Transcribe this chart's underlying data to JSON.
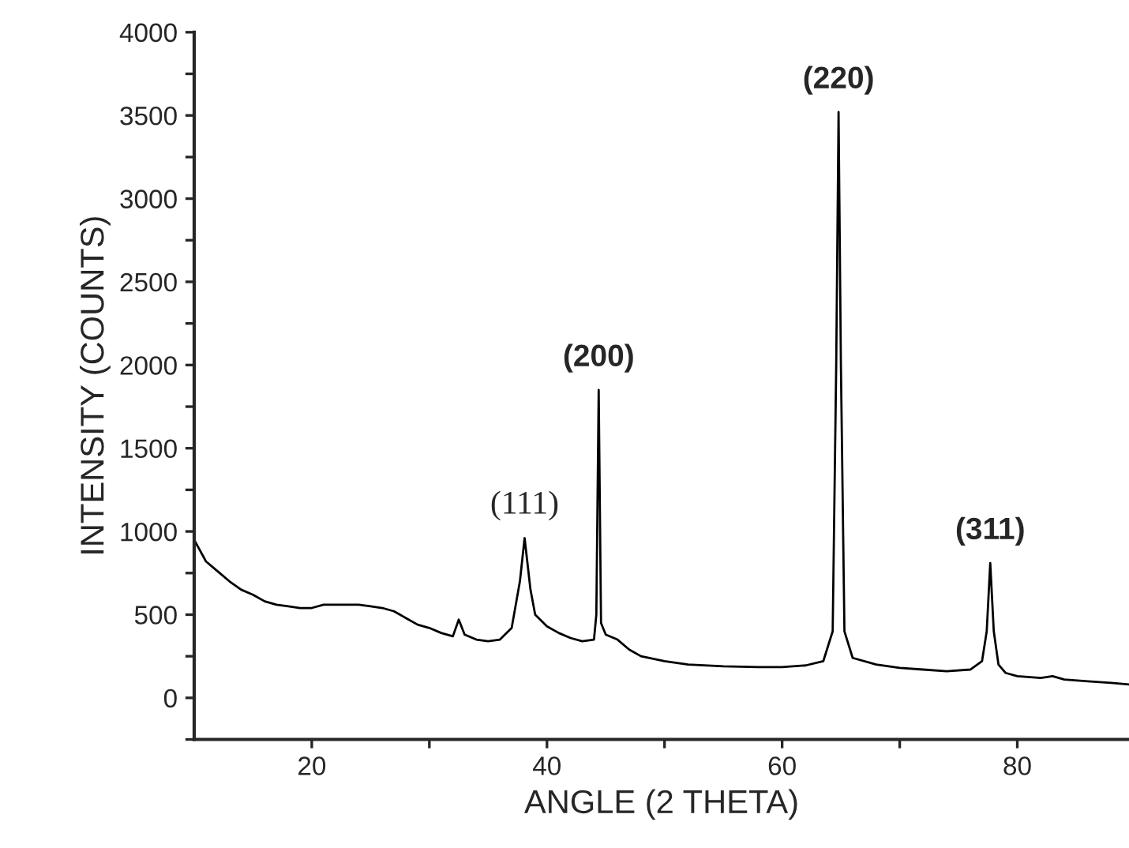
{
  "chart_data": {
    "type": "line",
    "xlabel": "ANGLE (2 THETA)",
    "ylabel": "INTENSITY (COUNTS)",
    "xlim": [
      10,
      89.5
    ],
    "xticks": [
      20,
      {
        "value": 30,
        "label": null
      },
      40,
      {
        "value": 50,
        "label": null
      },
      60,
      {
        "value": 70,
        "label": null
      },
      80
    ],
    "ylim": [
      -250,
      4000
    ],
    "yticks": [
      {
        "value": -250,
        "label": null
      },
      0,
      {
        "value": 250,
        "label": null
      },
      500,
      {
        "value": 750,
        "label": null
      },
      1000,
      {
        "value": 1250,
        "label": null
      },
      1500,
      {
        "value": 1750,
        "label": null
      },
      2000,
      {
        "value": 2250,
        "label": null
      },
      2500,
      {
        "value": 2750,
        "label": null
      },
      3000,
      {
        "value": 3250,
        "label": null
      },
      3500,
      {
        "value": 3750,
        "label": null
      },
      4000
    ],
    "grid": false,
    "legend": false,
    "marker": "none",
    "line_style": "solid",
    "series": [
      {
        "color": "#000000",
        "x": [
          10,
          11,
          12,
          13,
          14,
          15,
          16,
          17,
          18,
          19,
          20,
          21,
          22,
          23,
          24,
          25,
          26,
          27,
          28,
          29,
          30,
          31,
          32,
          32.5,
          33,
          34,
          35,
          36,
          37,
          37.7,
          38.1,
          38.6,
          39,
          40,
          41,
          42,
          43,
          44,
          44.2,
          44.4,
          44.6,
          45,
          46,
          47,
          48,
          50,
          52,
          55,
          58,
          60,
          62,
          63.5,
          64.3,
          64.6,
          64.8,
          65.0,
          65.3,
          66,
          68,
          70,
          72,
          74,
          76,
          77,
          77.4,
          77.7,
          78.0,
          78.4,
          79,
          80,
          82,
          83,
          84,
          86,
          88,
          89.5
        ],
        "values": [
          950,
          820,
          760,
          700,
          650,
          620,
          580,
          560,
          550,
          540,
          540,
          560,
          560,
          560,
          560,
          550,
          540,
          520,
          480,
          440,
          420,
          390,
          370,
          470,
          380,
          350,
          340,
          350,
          420,
          700,
          960,
          650,
          500,
          430,
          390,
          360,
          340,
          350,
          500,
          1850,
          450,
          380,
          350,
          290,
          250,
          220,
          200,
          190,
          185,
          185,
          195,
          220,
          400,
          2000,
          3520,
          2000,
          400,
          240,
          200,
          180,
          170,
          160,
          170,
          220,
          400,
          810,
          400,
          200,
          150,
          130,
          120,
          130,
          110,
          100,
          90,
          80
        ]
      }
    ],
    "annotations": [
      {
        "text": "(111)",
        "x": 38.1,
        "y": 960
      },
      {
        "text": "(200)",
        "x": 44.4,
        "y": 1850
      },
      {
        "text": "(220)",
        "x": 64.8,
        "y": 3520
      },
      {
        "text": "(311)",
        "x": 77.7,
        "y": 810
      }
    ]
  }
}
